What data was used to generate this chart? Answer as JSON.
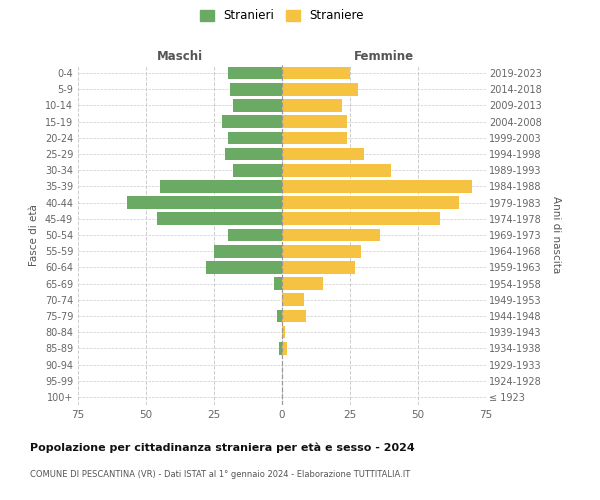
{
  "age_groups": [
    "0-4",
    "5-9",
    "10-14",
    "15-19",
    "20-24",
    "25-29",
    "30-34",
    "35-39",
    "40-44",
    "45-49",
    "50-54",
    "55-59",
    "60-64",
    "65-69",
    "70-74",
    "75-79",
    "80-84",
    "85-89",
    "90-94",
    "95-99",
    "100+"
  ],
  "birth_years": [
    "2019-2023",
    "2014-2018",
    "2009-2013",
    "2004-2008",
    "1999-2003",
    "1994-1998",
    "1989-1993",
    "1984-1988",
    "1979-1983",
    "1974-1978",
    "1969-1973",
    "1964-1968",
    "1959-1963",
    "1954-1958",
    "1949-1953",
    "1944-1948",
    "1939-1943",
    "1934-1938",
    "1929-1933",
    "1924-1928",
    "≤ 1923"
  ],
  "males": [
    20,
    19,
    18,
    22,
    20,
    21,
    18,
    45,
    57,
    46,
    20,
    25,
    28,
    3,
    0,
    2,
    0,
    1,
    0,
    0,
    0
  ],
  "females": [
    25,
    28,
    22,
    24,
    24,
    30,
    40,
    70,
    65,
    58,
    36,
    29,
    27,
    15,
    8,
    9,
    1,
    2,
    0,
    0,
    0
  ],
  "male_color": "#6aaa64",
  "female_color": "#f5c242",
  "male_label": "Stranieri",
  "female_label": "Straniere",
  "title": "Popolazione per cittadinanza straniera per età e sesso - 2024",
  "subtitle": "COMUNE DI PESCANTINA (VR) - Dati ISTAT al 1° gennaio 2024 - Elaborazione TUTTITALIA.IT",
  "ylabel_left": "Fasce di età",
  "ylabel_right": "Anni di nascita",
  "xlabel_left": "Maschi",
  "xlabel_right": "Femmine",
  "xlim": 75,
  "background_color": "#ffffff",
  "grid_color": "#cccccc"
}
